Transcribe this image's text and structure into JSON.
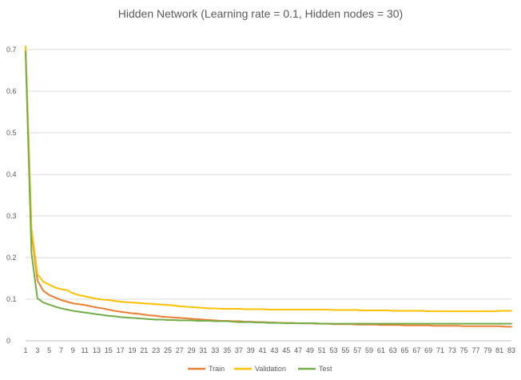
{
  "chart_data": {
    "type": "line",
    "title": "Hidden Network (Learning rate = 0.1, Hidden nodes = 30)",
    "xlabel": "",
    "ylabel": "",
    "x": [
      1,
      2,
      3,
      4,
      5,
      6,
      7,
      8,
      9,
      10,
      11,
      12,
      13,
      14,
      15,
      16,
      17,
      18,
      19,
      20,
      21,
      22,
      23,
      24,
      25,
      26,
      27,
      28,
      29,
      30,
      31,
      32,
      33,
      34,
      35,
      36,
      37,
      38,
      39,
      40,
      41,
      42,
      43,
      44,
      45,
      46,
      47,
      48,
      49,
      50,
      51,
      52,
      53,
      54,
      55,
      56,
      57,
      58,
      59,
      60,
      61,
      62,
      63,
      64,
      65,
      66,
      67,
      68,
      69,
      70,
      71,
      72,
      73,
      74,
      75,
      76,
      77,
      78,
      79,
      80,
      81,
      82,
      83
    ],
    "x_tick_labels": [
      "1",
      "3",
      "5",
      "7",
      "9",
      "11",
      "13",
      "15",
      "17",
      "19",
      "21",
      "23",
      "25",
      "27",
      "29",
      "31",
      "33",
      "35",
      "37",
      "39",
      "41",
      "43",
      "45",
      "47",
      "49",
      "51",
      "53",
      "55",
      "57",
      "59",
      "61",
      "63",
      "65",
      "67",
      "69",
      "71",
      "73",
      "75",
      "77",
      "79",
      "81",
      "83"
    ],
    "ylim": [
      0,
      0.7
    ],
    "y_ticks": [
      0,
      0.1,
      0.2,
      0.3,
      0.4,
      0.5,
      0.6,
      0.7
    ],
    "y_tick_labels": [
      "0",
      "0.1",
      "0.2",
      "0.3",
      "0.4",
      "0.5",
      "0.6",
      "0.7"
    ],
    "grid": true,
    "legend_position": "bottom",
    "series": [
      {
        "name": "Train",
        "color": "#ed7d31",
        "values": [
          0.7,
          0.26,
          0.145,
          0.12,
          0.11,
          0.104,
          0.098,
          0.094,
          0.09,
          0.088,
          0.086,
          0.083,
          0.08,
          0.078,
          0.075,
          0.072,
          0.07,
          0.068,
          0.066,
          0.065,
          0.063,
          0.061,
          0.06,
          0.058,
          0.057,
          0.056,
          0.055,
          0.054,
          0.053,
          0.052,
          0.051,
          0.05,
          0.049,
          0.048,
          0.048,
          0.047,
          0.047,
          0.046,
          0.046,
          0.045,
          0.045,
          0.044,
          0.044,
          0.043,
          0.043,
          0.043,
          0.042,
          0.042,
          0.042,
          0.041,
          0.041,
          0.041,
          0.04,
          0.04,
          0.04,
          0.04,
          0.039,
          0.039,
          0.039,
          0.039,
          0.038,
          0.038,
          0.038,
          0.038,
          0.037,
          0.037,
          0.037,
          0.037,
          0.037,
          0.036,
          0.036,
          0.036,
          0.036,
          0.036,
          0.035,
          0.035,
          0.035,
          0.035,
          0.035,
          0.035,
          0.035,
          0.034,
          0.034
        ]
      },
      {
        "name": "Validation",
        "color": "#ffc000",
        "values": [
          0.708,
          0.27,
          0.16,
          0.142,
          0.135,
          0.128,
          0.124,
          0.122,
          0.114,
          0.11,
          0.107,
          0.104,
          0.101,
          0.099,
          0.098,
          0.096,
          0.094,
          0.093,
          0.092,
          0.091,
          0.09,
          0.089,
          0.088,
          0.087,
          0.086,
          0.085,
          0.083,
          0.082,
          0.081,
          0.08,
          0.079,
          0.078,
          0.078,
          0.077,
          0.077,
          0.077,
          0.077,
          0.076,
          0.076,
          0.076,
          0.076,
          0.075,
          0.075,
          0.075,
          0.075,
          0.075,
          0.075,
          0.075,
          0.075,
          0.075,
          0.075,
          0.075,
          0.074,
          0.074,
          0.074,
          0.074,
          0.074,
          0.073,
          0.073,
          0.073,
          0.073,
          0.073,
          0.072,
          0.072,
          0.072,
          0.072,
          0.072,
          0.072,
          0.071,
          0.071,
          0.071,
          0.071,
          0.071,
          0.071,
          0.071,
          0.071,
          0.071,
          0.071,
          0.071,
          0.071,
          0.072,
          0.072,
          0.072
        ]
      },
      {
        "name": "Test",
        "color": "#70ad47",
        "values": [
          0.695,
          0.21,
          0.102,
          0.092,
          0.087,
          0.082,
          0.078,
          0.075,
          0.072,
          0.07,
          0.068,
          0.066,
          0.064,
          0.062,
          0.06,
          0.059,
          0.057,
          0.056,
          0.055,
          0.054,
          0.053,
          0.052,
          0.051,
          0.051,
          0.05,
          0.05,
          0.049,
          0.049,
          0.049,
          0.048,
          0.048,
          0.048,
          0.047,
          0.047,
          0.047,
          0.046,
          0.045,
          0.045,
          0.045,
          0.044,
          0.044,
          0.043,
          0.043,
          0.043,
          0.042,
          0.042,
          0.042,
          0.042,
          0.042,
          0.042,
          0.041,
          0.041,
          0.041,
          0.041,
          0.041,
          0.041,
          0.041,
          0.041,
          0.041,
          0.041,
          0.041,
          0.041,
          0.041,
          0.041,
          0.041,
          0.041,
          0.041,
          0.041,
          0.041,
          0.041,
          0.041,
          0.041,
          0.041,
          0.041,
          0.041,
          0.041,
          0.041,
          0.041,
          0.041,
          0.041,
          0.041,
          0.041,
          0.041
        ]
      }
    ]
  }
}
